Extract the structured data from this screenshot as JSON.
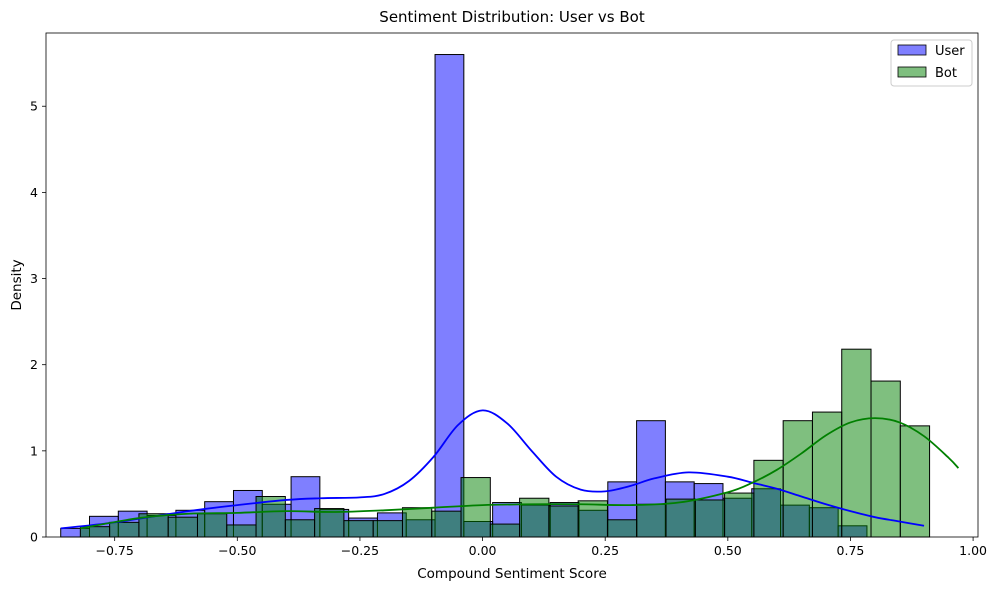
{
  "chart_data": {
    "type": "bar",
    "subtype": "histogram with KDE curves",
    "title": "Sentiment Distribution: User vs Bot",
    "xlabel": "Compound Sentiment Score",
    "ylabel": "Density",
    "xlim": [
      -0.89,
      1.01
    ],
    "ylim": [
      0,
      5.85
    ],
    "xticks": [
      -0.75,
      -0.5,
      -0.25,
      0.0,
      0.25,
      0.5,
      0.75,
      1.0
    ],
    "xtick_labels": [
      "−0.75",
      "−0.50",
      "−0.25",
      "0.00",
      "0.25",
      "0.50",
      "0.75",
      "1.00"
    ],
    "yticks": [
      0,
      1,
      2,
      3,
      4,
      5
    ],
    "ytick_labels": [
      "0",
      "1",
      "2",
      "3",
      "4",
      "5"
    ],
    "grid": false,
    "legend_position": "top-right",
    "series": [
      {
        "name": "User",
        "color": "#0000ff",
        "fill_opacity": 0.5,
        "bin_start": -0.86,
        "bin_width": 0.0587,
        "values": [
          0.1,
          0.24,
          0.3,
          0.25,
          0.31,
          0.41,
          0.54,
          0.38,
          0.7,
          0.32,
          0.22,
          0.28,
          0.2,
          5.6,
          0.18,
          0.4,
          0.37,
          0.4,
          0.31,
          0.64,
          1.35,
          0.64,
          0.62,
          0.45,
          0.56,
          0.37,
          0.34,
          0.13
        ],
        "kde_color": "#0000ff",
        "kde": {
          "x": [
            -0.86,
            -0.75,
            -0.6,
            -0.5,
            -0.4,
            -0.33,
            -0.25,
            -0.2,
            -0.15,
            -0.1,
            -0.05,
            0.0,
            0.05,
            0.1,
            0.15,
            0.2,
            0.25,
            0.3,
            0.35,
            0.42,
            0.5,
            0.55,
            0.6,
            0.65,
            0.7,
            0.75,
            0.8,
            0.85,
            0.9
          ],
          "y": [
            0.1,
            0.17,
            0.3,
            0.37,
            0.43,
            0.45,
            0.46,
            0.5,
            0.65,
            0.93,
            1.3,
            1.47,
            1.32,
            1.0,
            0.7,
            0.55,
            0.53,
            0.59,
            0.68,
            0.75,
            0.7,
            0.63,
            0.56,
            0.47,
            0.38,
            0.3,
            0.23,
            0.18,
            0.13
          ]
        }
      },
      {
        "name": "Bot",
        "color": "#008000",
        "fill_opacity": 0.5,
        "bin_start": -0.82,
        "bin_width": 0.0597,
        "values": [
          0.12,
          0.17,
          0.27,
          0.23,
          0.27,
          0.14,
          0.47,
          0.2,
          0.33,
          0.19,
          0.19,
          0.34,
          0.3,
          0.69,
          0.15,
          0.45,
          0.36,
          0.42,
          0.2,
          0.38,
          0.44,
          0.43,
          0.51,
          0.89,
          1.35,
          1.45,
          2.18,
          1.81,
          1.29
        ],
        "kde_color": "#008000",
        "kde": {
          "x": [
            -0.82,
            -0.7,
            -0.6,
            -0.5,
            -0.4,
            -0.3,
            -0.2,
            -0.1,
            0.0,
            0.1,
            0.2,
            0.3,
            0.4,
            0.5,
            0.55,
            0.6,
            0.65,
            0.7,
            0.75,
            0.8,
            0.85,
            0.9,
            0.95,
            0.97
          ],
          "y": [
            0.1,
            0.22,
            0.27,
            0.28,
            0.3,
            0.29,
            0.31,
            0.34,
            0.37,
            0.38,
            0.38,
            0.37,
            0.4,
            0.52,
            0.63,
            0.78,
            0.97,
            1.18,
            1.33,
            1.38,
            1.33,
            1.17,
            0.92,
            0.8
          ]
        }
      }
    ]
  }
}
